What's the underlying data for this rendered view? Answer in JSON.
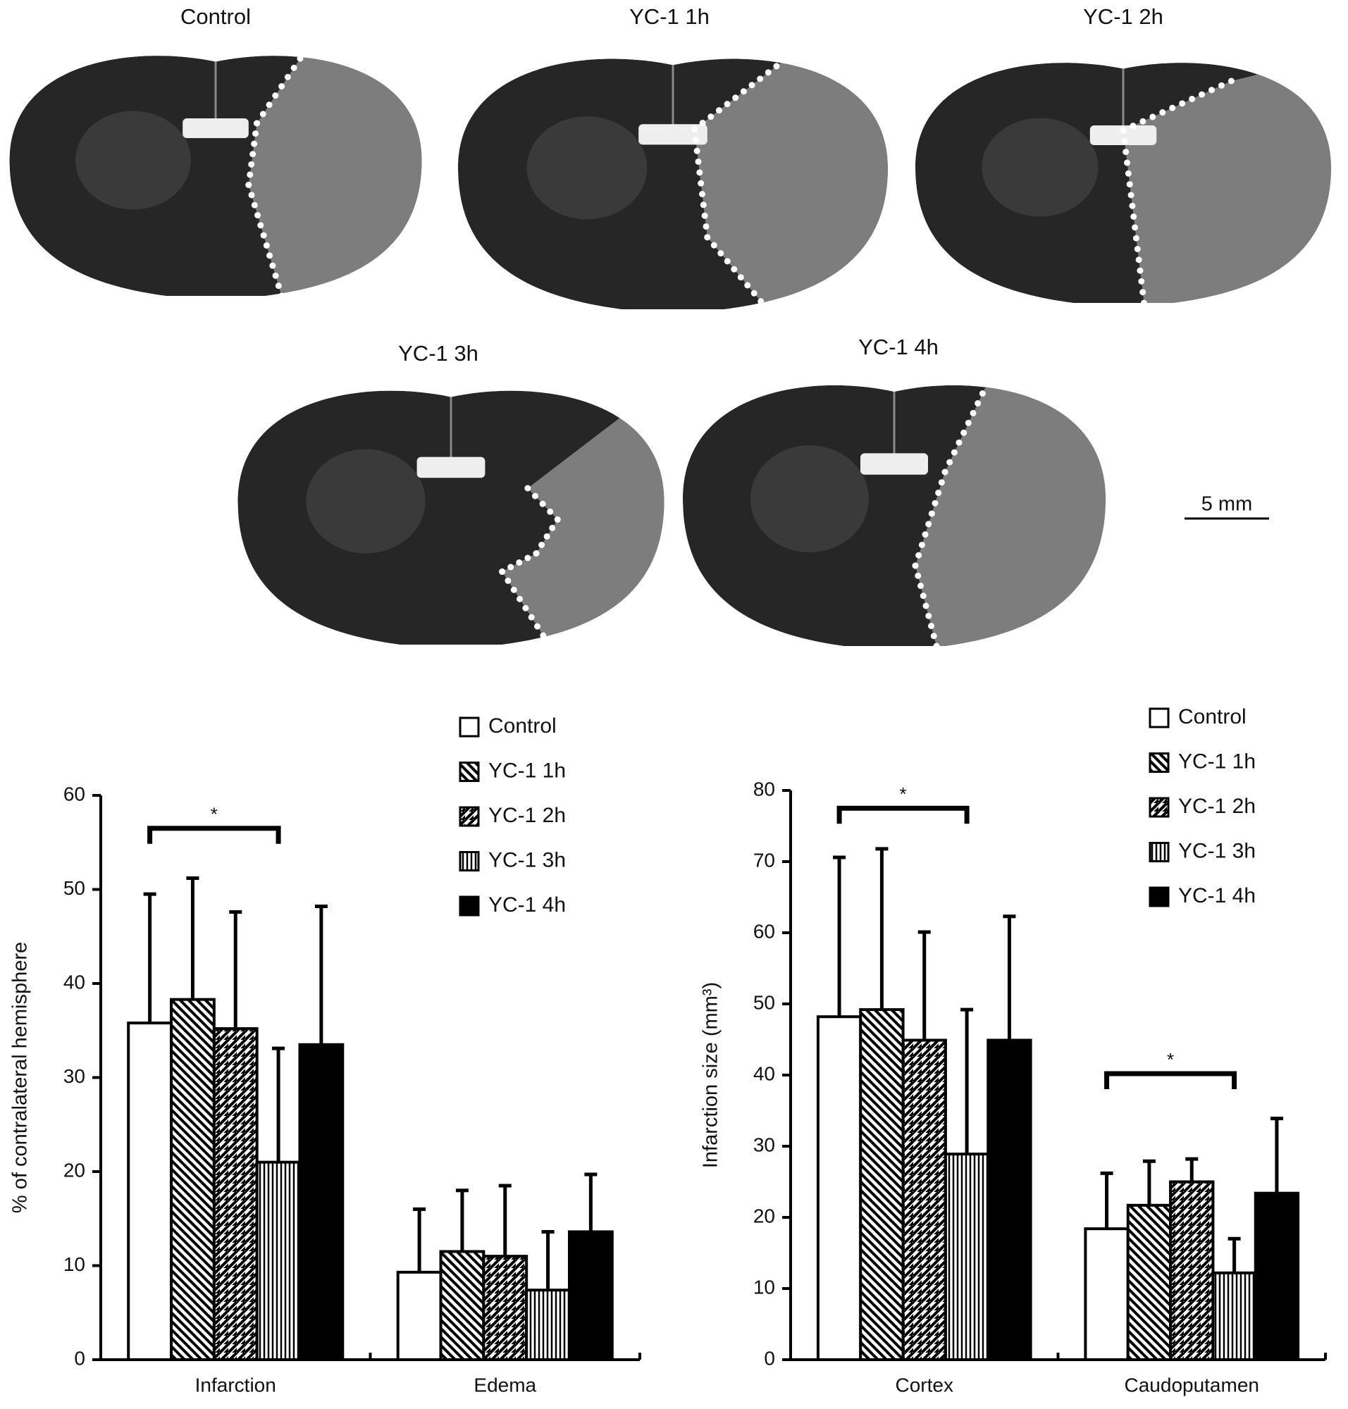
{
  "panels": [
    {
      "label": "Control"
    },
    {
      "label": "YC-1 1h"
    },
    {
      "label": "YC-1 2h"
    },
    {
      "label": "YC-1 3h"
    },
    {
      "label": "YC-1 4h"
    }
  ],
  "scale_bar": {
    "label": "5 mm"
  },
  "chart_data": [
    {
      "type": "bar",
      "ylabel": "% of contralateral hemisphere",
      "categories": [
        "Infarction",
        "Edema"
      ],
      "ylim": [
        0,
        60
      ],
      "yticks": [
        0,
        10,
        20,
        30,
        40,
        50,
        60
      ],
      "series": [
        {
          "name": "Control",
          "color": "#ffffff",
          "pattern": "none",
          "values": [
            35.8,
            9.3
          ],
          "errors": [
            13.7,
            6.7
          ]
        },
        {
          "name": "YC-1 1h",
          "color": "#000000",
          "pattern": "backslash",
          "values": [
            38.3,
            11.5
          ],
          "errors": [
            12.9,
            6.5
          ]
        },
        {
          "name": "YC-1 2h",
          "color": "#000000",
          "pattern": "slash",
          "values": [
            35.2,
            11.0
          ],
          "errors": [
            12.4,
            7.5
          ]
        },
        {
          "name": "YC-1 3h",
          "color": "#000000",
          "pattern": "vertical",
          "values": [
            21.0,
            7.4
          ],
          "errors": [
            12.1,
            6.2
          ]
        },
        {
          "name": "YC-1 4h",
          "color": "#000000",
          "pattern": "solid",
          "values": [
            33.5,
            13.6
          ],
          "errors": [
            14.7,
            6.1
          ]
        }
      ],
      "annotations": [
        {
          "text": "*",
          "category": "Infarction",
          "from": "Control",
          "to": "YC-1 3h",
          "y": 56.5
        }
      ]
    },
    {
      "type": "bar",
      "ylabel": "Infarction size (mm³)",
      "categories": [
        "Cortex",
        "Caudoputamen"
      ],
      "ylim": [
        0,
        80
      ],
      "yticks": [
        0,
        10,
        20,
        30,
        40,
        50,
        60,
        70,
        80
      ],
      "series": [
        {
          "name": "Control",
          "color": "#ffffff",
          "pattern": "none",
          "values": [
            48.2,
            18.4
          ],
          "errors": [
            22.4,
            7.8
          ]
        },
        {
          "name": "YC-1 1h",
          "color": "#000000",
          "pattern": "backslash",
          "values": [
            49.2,
            21.7
          ],
          "errors": [
            22.6,
            6.2
          ]
        },
        {
          "name": "YC-1 2h",
          "color": "#000000",
          "pattern": "slash",
          "values": [
            44.9,
            25.0
          ],
          "errors": [
            15.2,
            3.2
          ]
        },
        {
          "name": "YC-1 3h",
          "color": "#000000",
          "pattern": "vertical",
          "values": [
            28.9,
            12.2
          ],
          "errors": [
            20.3,
            4.8
          ]
        },
        {
          "name": "YC-1 4h",
          "color": "#000000",
          "pattern": "solid",
          "values": [
            44.9,
            23.4
          ],
          "errors": [
            17.4,
            10.5
          ]
        }
      ],
      "annotations": [
        {
          "text": "*",
          "category": "Cortex",
          "from": "Control",
          "to": "YC-1 3h",
          "y": 77.5
        },
        {
          "text": "*",
          "category": "Caudoputamen",
          "from": "Control",
          "to": "YC-1 3h",
          "y": 40.2
        }
      ]
    }
  ]
}
